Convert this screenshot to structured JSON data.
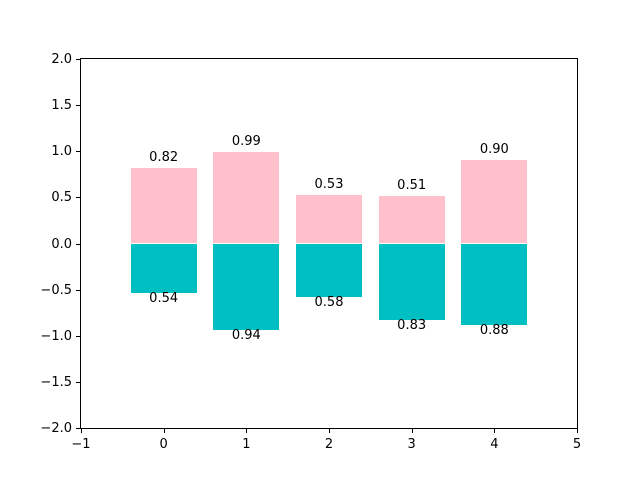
{
  "chart_data": {
    "type": "bar",
    "title": "",
    "xlabel": "",
    "ylabel": "",
    "x": [
      0,
      1,
      2,
      3,
      4
    ],
    "bar_width": 0.8,
    "series": [
      {
        "name": "positive-bars",
        "color": "#FFC0CB",
        "values": [
          0.82,
          0.99,
          0.53,
          0.51,
          0.9
        ],
        "labels": [
          "0.82",
          "0.99",
          "0.53",
          "0.51",
          "0.90"
        ],
        "label_position": "above"
      },
      {
        "name": "negative-bars",
        "color": "#00BFC2",
        "values": [
          -0.54,
          -0.94,
          -0.58,
          -0.83,
          -0.88
        ],
        "labels": [
          "0.54",
          "0.94",
          "0.58",
          "0.83",
          "0.88"
        ],
        "label_position": "below"
      }
    ],
    "xlim": [
      -1,
      5
    ],
    "ylim": [
      -2.0,
      2.0
    ],
    "xticks": [
      -1,
      0,
      1,
      2,
      3,
      4,
      5
    ],
    "xtick_labels": [
      "−1",
      "0",
      "1",
      "2",
      "3",
      "4",
      "5"
    ],
    "yticks": [
      -2.0,
      -1.5,
      -1.0,
      -0.5,
      0.0,
      0.5,
      1.0,
      1.5,
      2.0
    ],
    "ytick_labels": [
      "−2.0",
      "−1.5",
      "−1.0",
      "−0.5",
      "0.0",
      "0.5",
      "1.0",
      "1.5",
      "2.0"
    ],
    "grid": false,
    "legend": null,
    "background_color": "#ffffff",
    "spine_color": "#000000",
    "text_color": "#000000"
  }
}
